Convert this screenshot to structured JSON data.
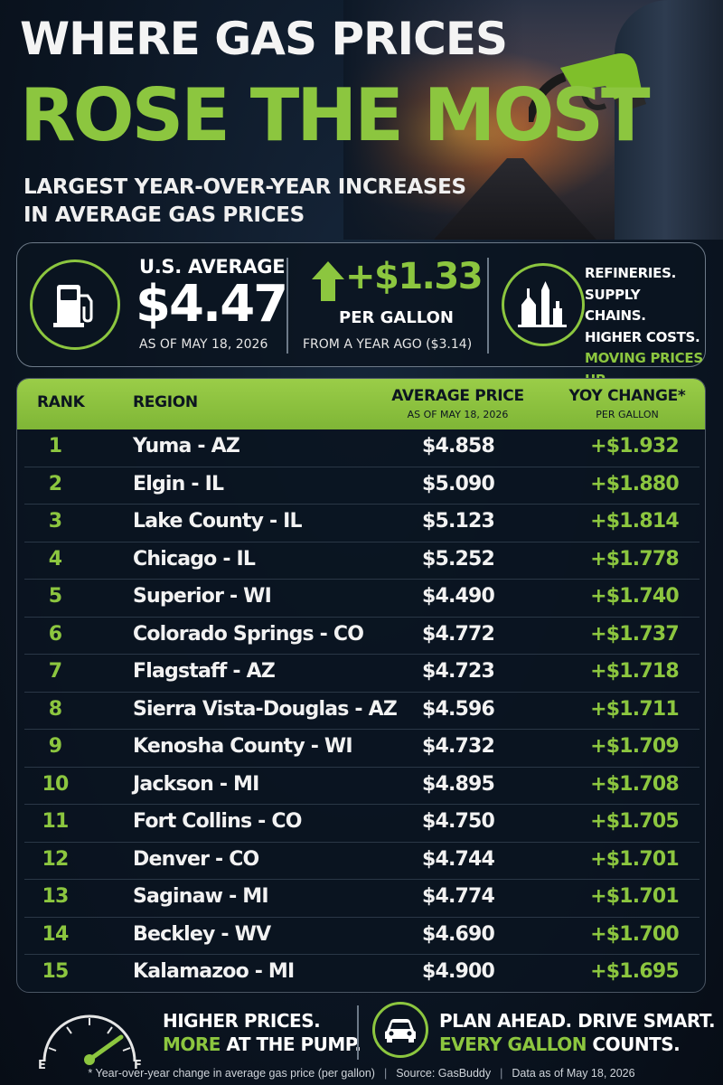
{
  "header": {
    "title_line1": "WHERE GAS PRICES",
    "title_line2": "ROSE THE MOST",
    "subtitle_line1": "LARGEST YEAR-OVER-YEAR INCREASES",
    "subtitle_line2": "IN AVERAGE GAS PRICES"
  },
  "stats": {
    "us_label": "U.S. AVERAGE",
    "us_price": "$4.47",
    "us_asof": "AS OF MAY 18, 2026",
    "change_value": "+$1.33",
    "change_unit": "PER GALLON",
    "change_from": "FROM A YEAR AGO ($3.14)",
    "causes": [
      "REFINERIES.",
      "SUPPLY CHAINS.",
      "HIGHER COSTS.",
      "MOVING PRICES UP."
    ]
  },
  "table": {
    "headers": {
      "rank": "RANK",
      "region": "REGION",
      "price": "AVERAGE PRICE",
      "price_sub": "AS OF MAY 18, 2026",
      "change": "YOY CHANGE*",
      "change_sub": "PER GALLON"
    },
    "rows": [
      {
        "rank": "1",
        "region": "Yuma - AZ",
        "price": "$4.858",
        "change": "+$1.932"
      },
      {
        "rank": "2",
        "region": "Elgin - IL",
        "price": "$5.090",
        "change": "+$1.880"
      },
      {
        "rank": "3",
        "region": "Lake County - IL",
        "price": "$5.123",
        "change": "+$1.814"
      },
      {
        "rank": "4",
        "region": "Chicago - IL",
        "price": "$5.252",
        "change": "+$1.778"
      },
      {
        "rank": "5",
        "region": "Superior - WI",
        "price": "$4.490",
        "change": "+$1.740"
      },
      {
        "rank": "6",
        "region": "Colorado Springs - CO",
        "price": "$4.772",
        "change": "+$1.737"
      },
      {
        "rank": "7",
        "region": "Flagstaff - AZ",
        "price": "$4.723",
        "change": "+$1.718"
      },
      {
        "rank": "8",
        "region": "Sierra Vista-Douglas - AZ",
        "price": "$4.596",
        "change": "+$1.711"
      },
      {
        "rank": "9",
        "region": "Kenosha County - WI",
        "price": "$4.732",
        "change": "+$1.709"
      },
      {
        "rank": "10",
        "region": "Jackson - MI",
        "price": "$4.895",
        "change": "+$1.708"
      },
      {
        "rank": "11",
        "region": "Fort Collins - CO",
        "price": "$4.750",
        "change": "+$1.705"
      },
      {
        "rank": "12",
        "region": "Denver - CO",
        "price": "$4.744",
        "change": "+$1.701"
      },
      {
        "rank": "13",
        "region": "Saginaw - MI",
        "price": "$4.774",
        "change": "+$1.701"
      },
      {
        "rank": "14",
        "region": "Beckley - WV",
        "price": "$4.690",
        "change": "+$1.700"
      },
      {
        "rank": "15",
        "region": "Kalamazoo - MI",
        "price": "$4.900",
        "change": "+$1.695"
      }
    ]
  },
  "footer": {
    "gauge_empty": "E",
    "gauge_full": "F",
    "left_line1": "HIGHER PRICES.",
    "left_line2_hl": "MORE",
    "left_line2_rest": " AT THE PUMP.",
    "right_line1": "PLAN AHEAD. DRIVE SMART.",
    "right_line2_hl": "EVERY GALLON",
    "right_line2_rest": " COUNTS.",
    "note": "* Year-over-year change in average gas price (per gallon)",
    "source": "Source: GasBuddy",
    "data_asof": "Data as of May 18, 2026"
  },
  "colors": {
    "accent": "#8cc63f",
    "background": "#0b1522"
  },
  "icons": [
    "gas-pump-icon",
    "up-arrow-icon",
    "refinery-icon",
    "fuel-gauge-icon",
    "car-icon"
  ]
}
